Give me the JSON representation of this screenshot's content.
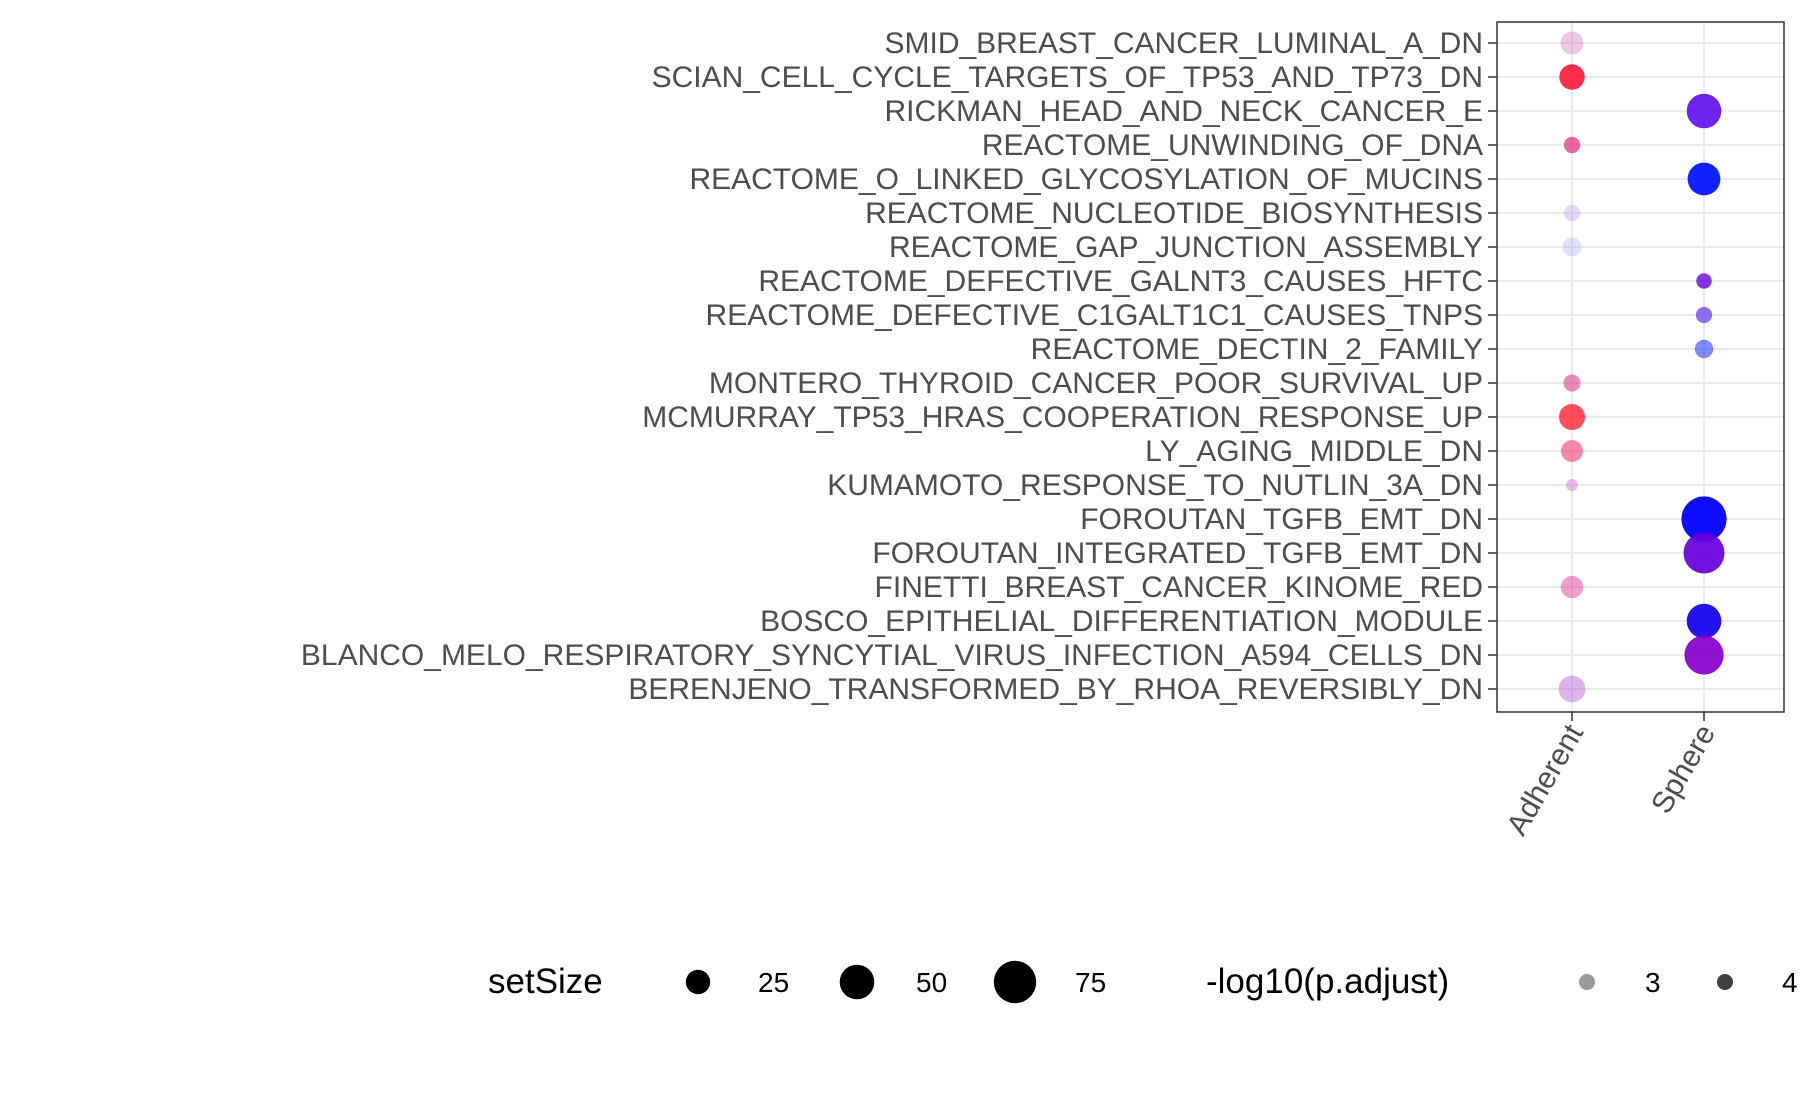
{
  "chart_data": {
    "type": "scatter",
    "subtype": "dot-plot",
    "x_categories": [
      "Adherent",
      "Sphere"
    ],
    "y_categories": [
      "SMID_BREAST_CANCER_LUMINAL_A_DN",
      "SCIAN_CELL_CYCLE_TARGETS_OF_TP53_AND_TP73_DN",
      "RICKMAN_HEAD_AND_NECK_CANCER_E",
      "REACTOME_UNWINDING_OF_DNA",
      "REACTOME_O_LINKED_GLYCOSYLATION_OF_MUCINS",
      "REACTOME_NUCLEOTIDE_BIOSYNTHESIS",
      "REACTOME_GAP_JUNCTION_ASSEMBLY",
      "REACTOME_DEFECTIVE_GALNT3_CAUSES_HFTC",
      "REACTOME_DEFECTIVE_C1GALT1C1_CAUSES_TNPS",
      "REACTOME_DECTIN_2_FAMILY",
      "MONTERO_THYROID_CANCER_POOR_SURVIVAL_UP",
      "MCMURRAY_TP53_HRAS_COOPERATION_RESPONSE_UP",
      "LY_AGING_MIDDLE_DN",
      "KUMAMOTO_RESPONSE_TO_NUTLIN_3A_DN",
      "FOROUTAN_TGFB_EMT_DN",
      "FOROUTAN_INTEGRATED_TGFB_EMT_DN",
      "FINETTI_BREAST_CANCER_KINOME_RED",
      "BOSCO_EPITHELIAL_DIFFERENTIATION_MODULE",
      "BLANCO_MELO_RESPIRATORY_SYNCYTIAL_VIRUS_INFECTION_A594_CELLS_DN",
      "BERENJENO_TRANSFORMED_BY_RHOA_REVERSIBLY_DN"
    ],
    "points": [
      {
        "x": "Adherent",
        "y": "SMID_BREAST_CANCER_LUMINAL_A_DN",
        "setSize": 22,
        "neglog10_padj": 2.9,
        "color": "#cc66bb"
      },
      {
        "x": "Adherent",
        "y": "SCIAN_CELL_CYCLE_TARGETS_OF_TP53_AND_TP73_DN",
        "setSize": 27,
        "neglog10_padj": 4.2,
        "color": "#ff0022"
      },
      {
        "x": "Sphere",
        "y": "RICKMAN_HEAD_AND_NECK_CANCER_E",
        "setSize": 50,
        "neglog10_padj": 4.3,
        "color": "#5500ee"
      },
      {
        "x": "Adherent",
        "y": "REACTOME_UNWINDING_OF_DNA",
        "setSize": 11,
        "neglog10_padj": 3.8,
        "color": "#dd2277"
      },
      {
        "x": "Sphere",
        "y": "REACTOME_O_LINKED_GLYCOSYLATION_OF_MUCINS",
        "setSize": 45,
        "neglog10_padj": 4.5,
        "color": "#0011ff"
      },
      {
        "x": "Adherent",
        "y": "REACTOME_NUCLEOTIDE_BIOSYNTHESIS",
        "setSize": 11,
        "neglog10_padj": 2.8,
        "color": "#aa88ee"
      },
      {
        "x": "Adherent",
        "y": "REACTOME_GAP_JUNCTION_ASSEMBLY",
        "setSize": 15,
        "neglog10_padj": 2.7,
        "color": "#9999ee"
      },
      {
        "x": "Sphere",
        "y": "REACTOME_DEFECTIVE_GALNT3_CAUSES_HFTC",
        "setSize": 10,
        "neglog10_padj": 4.1,
        "color": "#6600dd"
      },
      {
        "x": "Sphere",
        "y": "REACTOME_DEFECTIVE_C1GALT1C1_CAUSES_TNPS",
        "setSize": 11,
        "neglog10_padj": 3.7,
        "color": "#5522ee"
      },
      {
        "x": "Sphere",
        "y": "REACTOME_DECTIN_2_FAMILY",
        "setSize": 14,
        "neglog10_padj": 3.5,
        "color": "#2233ff"
      },
      {
        "x": "Adherent",
        "y": "MONTERO_THYROID_CANCER_POOR_SURVIVAL_UP",
        "setSize": 12,
        "neglog10_padj": 3.5,
        "color": "#dd3388"
      },
      {
        "x": "Adherent",
        "y": "MCMURRAY_TP53_HRAS_COOPERATION_RESPONSE_UP",
        "setSize": 28,
        "neglog10_padj": 4.0,
        "color": "#ff1122"
      },
      {
        "x": "Adherent",
        "y": "LY_AGING_MIDDLE_DN",
        "setSize": 20,
        "neglog10_padj": 3.5,
        "color": "#ee3366"
      },
      {
        "x": "Adherent",
        "y": "KUMAMOTO_RESPONSE_TO_NUTLIN_3A_DN",
        "setSize": 6,
        "neglog10_padj": 3.0,
        "color": "#bb55cc"
      },
      {
        "x": "Sphere",
        "y": "FOROUTAN_TGFB_EMT_DN",
        "setSize": 85,
        "neglog10_padj": 4.6,
        "color": "#0000ff"
      },
      {
        "x": "Sphere",
        "y": "FOROUTAN_INTEGRATED_TGFB_EMT_DN",
        "setSize": 70,
        "neglog10_padj": 4.5,
        "color": "#6600dd"
      },
      {
        "x": "Adherent",
        "y": "FINETTI_BREAST_CANCER_KINOME_RED",
        "setSize": 21,
        "neglog10_padj": 3.2,
        "color": "#dd3399"
      },
      {
        "x": "Sphere",
        "y": "BOSCO_EPITHELIAL_DIFFERENTIATION_MODULE",
        "setSize": 50,
        "neglog10_padj": 4.5,
        "color": "#1100ee"
      },
      {
        "x": "Sphere",
        "y": "BLANCO_MELO_RESPIRATORY_SYNCYTIAL_VIRUS_INFECTION_A594_CELLS_DN",
        "setSize": 64,
        "neglog10_padj": 4.5,
        "color": "#8800cc"
      },
      {
        "x": "Adherent",
        "y": "BERENJENO_TRANSFORMED_BY_RHOA_REVERSIBLY_DN",
        "setSize": 30,
        "neglog10_padj": 3.0,
        "color": "#aa44cc"
      }
    ],
    "legend": {
      "position": "bottom",
      "size_title": "setSize",
      "size_breaks": [
        25,
        50,
        75
      ],
      "alpha_title": "-log10(p.adjust)",
      "alpha_breaks": [
        3,
        4
      ]
    },
    "grid": true
  }
}
